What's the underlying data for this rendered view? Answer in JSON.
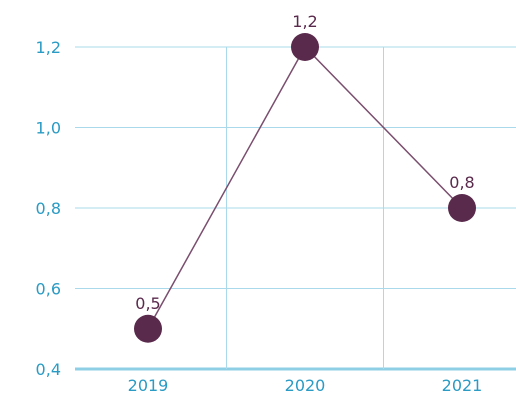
{
  "chart_data": {
    "type": "line",
    "categories": [
      "2019",
      "2020",
      "2021"
    ],
    "series": [
      {
        "values": [
          0.5,
          1.2,
          0.8
        ],
        "labels": [
          "0,5",
          "1,2",
          "0,8"
        ]
      }
    ],
    "ylim": [
      0.4,
      1.2
    ],
    "yticks": [
      {
        "value": 0.4,
        "label": "0,4"
      },
      {
        "value": 0.6,
        "label": "0,6"
      },
      {
        "value": 0.8,
        "label": "0,8"
      },
      {
        "value": 1.0,
        "label": "1,0"
      },
      {
        "value": 1.2,
        "label": "1,2"
      }
    ],
    "grid": true,
    "legend": "none"
  },
  "colors": {
    "axis_text": "#2a9bc4",
    "grid": "#a9d9ea",
    "baseline": "#8fcfe6",
    "line": "#7a4e6e",
    "marker": "#5a2a4c",
    "data_label": "#5a2a4c"
  }
}
